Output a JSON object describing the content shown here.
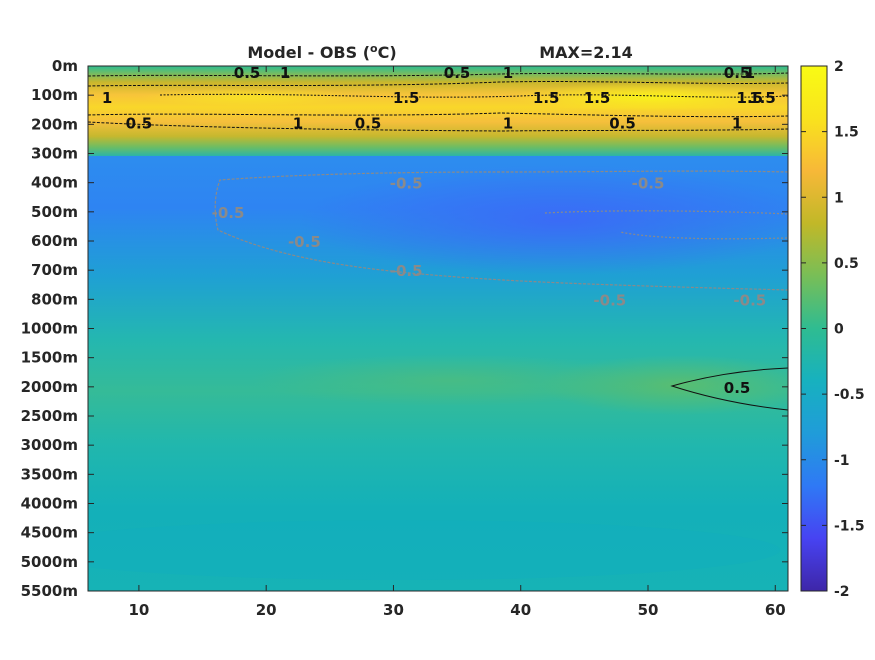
{
  "chart_data": {
    "type": "heatmap",
    "title": "Model - OBS (",
    "title_sup": "o",
    "title_unit": "C)",
    "max_label": "MAX=2.14",
    "x_ticks": [
      "10",
      "20",
      "30",
      "40",
      "50",
      "60"
    ],
    "x_tick_values": [
      10,
      20,
      30,
      40,
      50,
      60
    ],
    "xlim": [
      6,
      61
    ],
    "y_ticks": [
      "0m",
      "100m",
      "200m",
      "300m",
      "400m",
      "500m",
      "600m",
      "700m",
      "800m",
      "1000m",
      "1500m",
      "2000m",
      "2500m",
      "3000m",
      "3500m",
      "4000m",
      "4500m",
      "5000m",
      "5500m"
    ],
    "colorbar": {
      "ticks": [
        "2",
        "1.5",
        "1",
        "0.5",
        "0",
        "-0.5",
        "-1",
        "-1.5",
        "-2"
      ],
      "range": [
        -2,
        2
      ],
      "colors": [
        "#3e26a8",
        "#4743f2",
        "#2f79f5",
        "#209cd9",
        "#17b1bf",
        "#2fbc91",
        "#78be57",
        "#c1b828",
        "#f7b838",
        "#f9e31d",
        "#f9fb14"
      ]
    },
    "contour_labels": [
      {
        "text": "0.5",
        "x": 18.5,
        "depth": "0m",
        "color": "black"
      },
      {
        "text": "1",
        "x": 21.5,
        "depth": "0m",
        "color": "black"
      },
      {
        "text": "0.5",
        "x": 35,
        "depth": "0m",
        "color": "black"
      },
      {
        "text": "1",
        "x": 39,
        "depth": "0m",
        "color": "black"
      },
      {
        "text": "0.5",
        "x": 57,
        "depth": "0m",
        "color": "black"
      },
      {
        "text": "1",
        "x": 58,
        "depth": "0m",
        "color": "black"
      },
      {
        "text": "1.5",
        "x": 42,
        "depth": "100m",
        "color": "black"
      },
      {
        "text": "1.5",
        "x": 59,
        "depth": "100m",
        "color": "black"
      },
      {
        "text": "1",
        "x": 7.5,
        "depth": "100m",
        "color": "black"
      },
      {
        "text": "1.5",
        "x": 31,
        "depth": "100m",
        "color": "black"
      },
      {
        "text": "1.5",
        "x": 46,
        "depth": "100m",
        "color": "black"
      },
      {
        "text": "1.5",
        "x": 58,
        "depth": "100m",
        "color": "black"
      },
      {
        "text": "1",
        "x": 22.5,
        "depth": "200m",
        "color": "black"
      },
      {
        "text": "1",
        "x": 39,
        "depth": "200m",
        "color": "black"
      },
      {
        "text": "1",
        "x": 57,
        "depth": "200m",
        "color": "black"
      },
      {
        "text": "0.5",
        "x": 10,
        "depth": "200m",
        "color": "black"
      },
      {
        "text": "0.5",
        "x": 28,
        "depth": "200m",
        "color": "black"
      },
      {
        "text": "0.5",
        "x": 48,
        "depth": "200m",
        "color": "black"
      },
      {
        "text": "-0.5",
        "x": 31,
        "depth": "400m",
        "color": "gray"
      },
      {
        "text": "-0.5",
        "x": 50,
        "depth": "400m",
        "color": "gray"
      },
      {
        "text": "-0.5",
        "x": 17,
        "depth": "500m",
        "color": "gray"
      },
      {
        "text": "-0.5",
        "x": 23,
        "depth": "600m",
        "color": "gray"
      },
      {
        "text": "-0.5",
        "x": 31,
        "depth": "700m",
        "color": "gray"
      },
      {
        "text": "-0.5",
        "x": 47,
        "depth": "800m",
        "color": "gray"
      },
      {
        "text": "-0.5",
        "x": 58,
        "depth": "800m",
        "color": "gray"
      },
      {
        "text": "0.5",
        "x": 57,
        "depth": "2000m",
        "color": "black"
      }
    ]
  }
}
